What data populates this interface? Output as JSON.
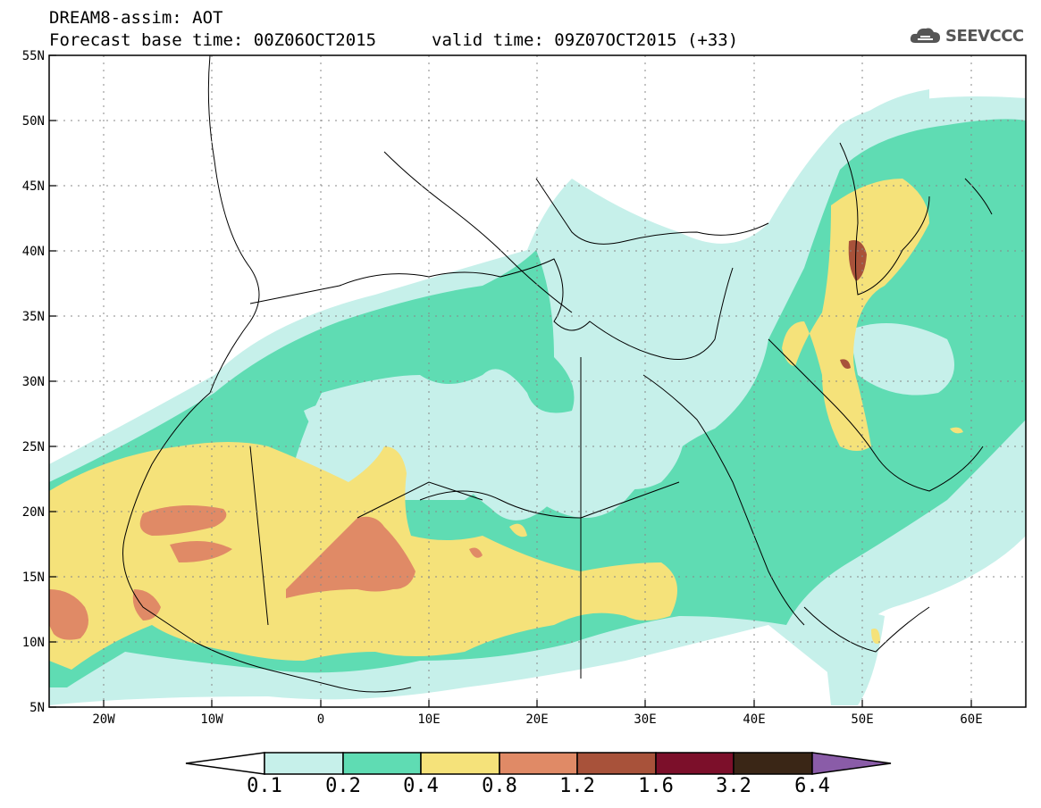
{
  "header": {
    "title": "DREAM8-assim: AOT",
    "base_time": "Forecast base time: 00Z06OCT2015",
    "valid_time": "valid time: 09Z07OCT2015 (+33)",
    "logo_text": "SEEVCCC"
  },
  "map": {
    "lat_range": [
      5,
      55
    ],
    "lon_range": [
      -25,
      65
    ],
    "lat_labels": [
      "55N",
      "50N",
      "45N",
      "40N",
      "35N",
      "30N",
      "25N",
      "20N",
      "15N",
      "10N",
      "5N"
    ],
    "lon_labels": [
      "20W",
      "10W",
      "0",
      "10E",
      "20E",
      "30E",
      "40E",
      "50E",
      "60E"
    ]
  },
  "colorbar": {
    "labels": [
      "0.1",
      "0.2",
      "0.4",
      "0.8",
      "1.2",
      "1.6",
      "3.2",
      "6.4"
    ],
    "colors": [
      "#ffffff",
      "#c6f0ea",
      "#5fdcb3",
      "#f5e27a",
      "#e08a66",
      "#a8523a",
      "#7c0f2a",
      "#3a2616",
      "#8a5ca8"
    ]
  },
  "chart_data": {
    "type": "heatmap",
    "title": "DREAM8-assim: AOT",
    "xlabel": "",
    "ylabel": "",
    "x_ticks": [
      "20W",
      "10W",
      "0",
      "10E",
      "20E",
      "30E",
      "40E",
      "50E",
      "60E"
    ],
    "y_ticks": [
      "55N",
      "50N",
      "45N",
      "40N",
      "35N",
      "30N",
      "25N",
      "20N",
      "15N",
      "10N",
      "5N"
    ],
    "levels": [
      0.1,
      0.2,
      0.4,
      0.8,
      1.2,
      1.6,
      3.2,
      6.4
    ],
    "level_colors": [
      "#c6f0ea",
      "#5fdcb3",
      "#f5e27a",
      "#e08a66",
      "#a8523a",
      "#7c0f2a",
      "#3a2616"
    ]
  }
}
